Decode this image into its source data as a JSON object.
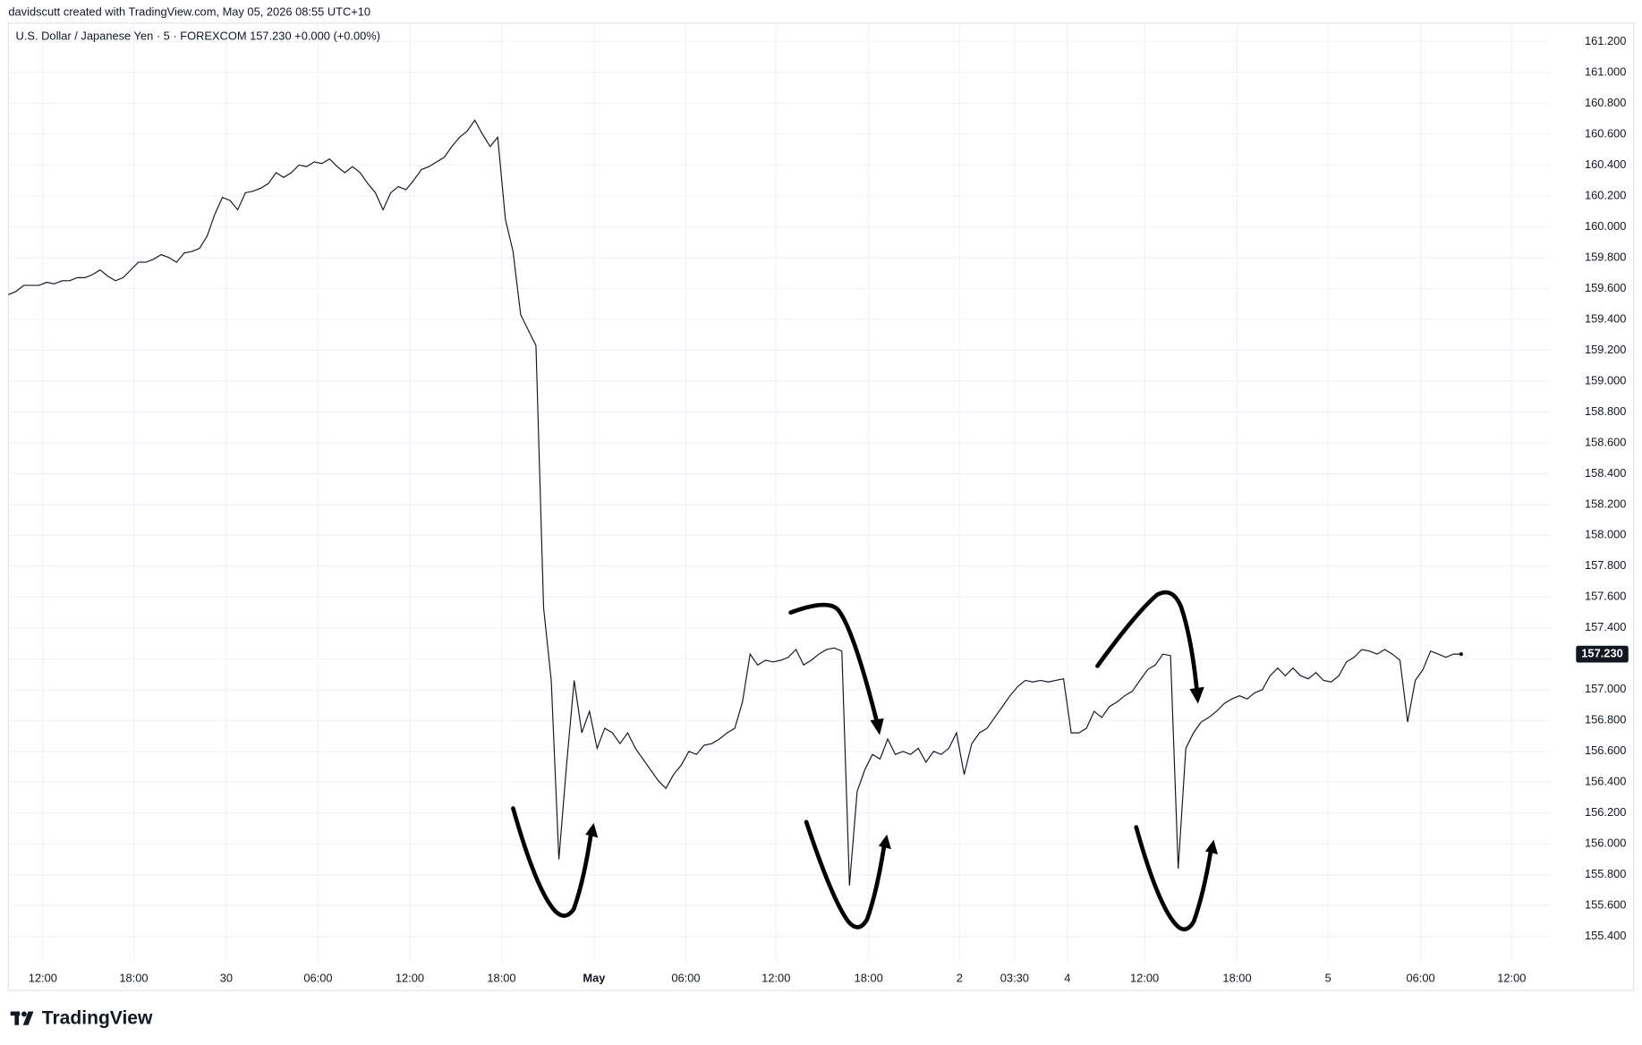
{
  "header": "davidscutt created with TradingView.com, May 05, 2026 08:55 UTC+10",
  "logo": "TradingView",
  "chart_data": {
    "type": "line",
    "title": "U.S. Dollar / Japanese Yen · 5 · FOREXCOM  157.230  +0.000 (+0.00%)",
    "color": "#131722",
    "grid": true,
    "last_label": "157.230",
    "values": [
      159.56,
      159.58,
      159.62,
      159.62,
      159.62,
      159.64,
      159.63,
      159.65,
      159.65,
      159.67,
      159.67,
      159.69,
      159.72,
      159.68,
      159.65,
      159.67,
      159.72,
      159.77,
      159.77,
      159.79,
      159.82,
      159.8,
      159.77,
      159.83,
      159.84,
      159.86,
      159.94,
      160.08,
      160.19,
      160.17,
      160.11,
      160.22,
      160.23,
      160.25,
      160.28,
      160.35,
      160.32,
      160.35,
      160.4,
      160.39,
      160.42,
      160.41,
      160.44,
      160.39,
      160.35,
      160.39,
      160.35,
      160.28,
      160.22,
      160.11,
      160.22,
      160.26,
      160.24,
      160.3,
      160.37,
      160.39,
      160.42,
      160.45,
      160.52,
      160.58,
      160.62,
      160.69,
      160.6,
      160.52,
      160.58,
      160.05,
      159.84,
      159.43,
      159.33,
      159.23,
      157.53,
      157.06,
      155.9,
      156.51,
      157.06,
      156.72,
      156.86,
      156.62,
      156.75,
      156.72,
      156.65,
      156.72,
      156.62,
      156.55,
      156.48,
      156.41,
      156.36,
      156.45,
      156.51,
      156.6,
      156.58,
      156.64,
      156.65,
      156.68,
      156.72,
      156.75,
      156.92,
      157.23,
      157.16,
      157.19,
      157.18,
      157.19,
      157.21,
      157.26,
      157.16,
      157.19,
      157.23,
      157.26,
      157.27,
      157.25,
      155.73,
      156.34,
      156.48,
      156.58,
      156.55,
      156.68,
      156.58,
      156.6,
      156.58,
      156.62,
      156.53,
      156.6,
      156.58,
      156.62,
      156.72,
      156.45,
      156.65,
      156.72,
      156.75,
      156.82,
      156.89,
      156.96,
      157.02,
      157.06,
      157.05,
      157.06,
      157.05,
      157.06,
      157.07,
      156.72,
      156.72,
      156.75,
      156.86,
      156.82,
      156.89,
      156.92,
      156.96,
      156.99,
      157.06,
      157.13,
      157.16,
      157.23,
      157.22,
      155.84,
      156.62,
      156.72,
      156.79,
      156.82,
      156.86,
      156.91,
      156.94,
      156.96,
      156.94,
      156.98,
      157,
      157.09,
      157.14,
      157.09,
      157.14,
      157.09,
      157.07,
      157.11,
      157.06,
      157.05,
      157.09,
      157.18,
      157.21,
      157.26,
      157.25,
      157.23,
      157.26,
      157.23,
      157.19,
      156.79,
      157.06,
      157.13,
      157.25,
      157.23,
      157.21,
      157.23,
      157.23
    ],
    "xlim": [
      0,
      201.6
    ],
    "xticks": [
      {
        "value": 4.5,
        "label": "12:00"
      },
      {
        "value": 16.4,
        "label": "18:00"
      },
      {
        "value": 28.5,
        "label": "30"
      },
      {
        "value": 40.5,
        "label": "06:00"
      },
      {
        "value": 52.5,
        "label": "12:00"
      },
      {
        "value": 64.5,
        "label": "18:00"
      },
      {
        "value": 76.6,
        "label": "May"
      },
      {
        "value": 88.6,
        "label": "06:00"
      },
      {
        "value": 100.4,
        "label": "12:00"
      },
      {
        "value": 112.5,
        "label": "18:00"
      },
      {
        "value": 124.4,
        "label": "2"
      },
      {
        "value": 131.6,
        "label": "03:30"
      },
      {
        "value": 138.5,
        "label": "4"
      },
      {
        "value": 148.6,
        "label": "12:00"
      },
      {
        "value": 160.7,
        "label": "18:00"
      },
      {
        "value": 172.6,
        "label": "5"
      },
      {
        "value": 184.7,
        "label": "06:00"
      },
      {
        "value": 196.6,
        "label": "12:00"
      }
    ],
    "ylim": [
      155.24,
      161.32
    ],
    "yticks": [
      {
        "value": 155.4,
        "label": "155.400"
      },
      {
        "value": 155.6,
        "label": "155.600"
      },
      {
        "value": 155.8,
        "label": "155.800"
      },
      {
        "value": 156,
        "label": "156.000"
      },
      {
        "value": 156.2,
        "label": "156.200"
      },
      {
        "value": 156.4,
        "label": "156.400"
      },
      {
        "value": 156.6,
        "label": "156.600"
      },
      {
        "value": 156.8,
        "label": "156.800"
      },
      {
        "value": 157,
        "label": "157.000"
      },
      {
        "value": 157.2,
        "label": "157.200"
      },
      {
        "value": 157.4,
        "label": "157.400"
      },
      {
        "value": 157.6,
        "label": "157.600"
      },
      {
        "value": 157.8,
        "label": "157.800"
      },
      {
        "value": 158,
        "label": "158.000"
      },
      {
        "value": 158.2,
        "label": "158.200"
      },
      {
        "value": 158.4,
        "label": "158.400"
      },
      {
        "value": 158.6,
        "label": "158.600"
      },
      {
        "value": 158.8,
        "label": "158.800"
      },
      {
        "value": 159,
        "label": "159.000"
      },
      {
        "value": 159.2,
        "label": "159.200"
      },
      {
        "value": 159.4,
        "label": "159.400"
      },
      {
        "value": 159.6,
        "label": "159.600"
      },
      {
        "value": 159.8,
        "label": "159.800"
      },
      {
        "value": 160,
        "label": "160.000"
      },
      {
        "value": 160.2,
        "label": "160.200"
      },
      {
        "value": 160.4,
        "label": "160.400"
      },
      {
        "value": 160.6,
        "label": "160.600"
      },
      {
        "value": 160.8,
        "label": "160.800"
      },
      {
        "value": 161,
        "label": "161.000"
      },
      {
        "value": 161.2,
        "label": "161.200"
      }
    ]
  }
}
